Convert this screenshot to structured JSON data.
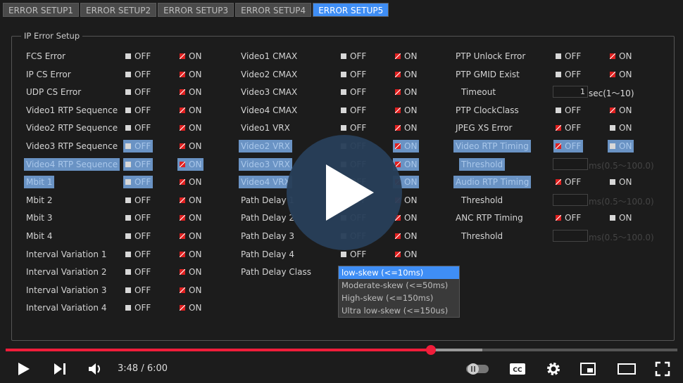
{
  "tabs": [
    "ERROR SETUP1",
    "ERROR SETUP2",
    "ERROR SETUP3",
    "ERROR SETUP4",
    "ERROR SETUP5"
  ],
  "active_tab": 4,
  "group_title": "IP Error Setup",
  "off_label": "OFF",
  "on_label": "ON",
  "columns": [
    [
      {
        "label": "FCS Error",
        "on": true
      },
      {
        "label": "IP CS Error",
        "on": true
      },
      {
        "label": "UDP CS Error",
        "on": true
      },
      {
        "label": "Video1 RTP Sequence",
        "on": true
      },
      {
        "label": "Video2 RTP Sequence",
        "on": true
      },
      {
        "label": "Video3 RTP Sequence",
        "on": true,
        "hl_off": true
      },
      {
        "label": "Video4 RTP Sequence",
        "on": true,
        "hl_label": true,
        "hl_off": true,
        "hl_on": true
      },
      {
        "label": "Mbit 1",
        "on": true,
        "hl_label": true,
        "hl_off": true
      },
      {
        "label": "Mbit 2",
        "on": true
      },
      {
        "label": "Mbit 3",
        "on": true
      },
      {
        "label": "Mbit 4",
        "on": true
      },
      {
        "label": "Interval Variation 1",
        "on": true
      },
      {
        "label": "Interval Variation 2",
        "on": true
      },
      {
        "label": "Interval Variation 3",
        "on": true
      },
      {
        "label": "Interval Variation 4",
        "on": true
      }
    ],
    [
      {
        "label": "Video1 CMAX",
        "on": true
      },
      {
        "label": "Video2 CMAX",
        "on": true
      },
      {
        "label": "Video3 CMAX",
        "on": true
      },
      {
        "label": "Video4 CMAX",
        "on": true
      },
      {
        "label": "Video1 VRX",
        "on": true
      },
      {
        "label": "Video2 VRX",
        "on": true,
        "hl_label": true,
        "hl_on": true
      },
      {
        "label": "Video3 VRX",
        "on": true,
        "hl_label": true,
        "hl_on": true
      },
      {
        "label": "Video4 VRX",
        "on": true,
        "hl_label": true,
        "hl_on": true
      },
      {
        "label": "Path Delay 1",
        "on": true
      },
      {
        "label": "Path Delay 2",
        "on": true
      },
      {
        "label": "Path Delay 3",
        "on": true
      },
      {
        "label": "Path Delay 4",
        "on": true
      },
      {
        "label": "Path Delay Class",
        "dropdown": true
      }
    ],
    [
      {
        "label": "PTP Unlock Error",
        "on": true
      },
      {
        "label": "PTP GMID Exist",
        "on": true
      },
      {
        "label": "Timeout",
        "sub": true,
        "value": "1",
        "unit": "sec(1～10)"
      },
      {
        "label": "PTP ClockClass",
        "on": true
      },
      {
        "label": "JPEG XS Error",
        "on": false
      },
      {
        "label": "Video RTP Timing",
        "on": false,
        "hl_label": true,
        "hl_off": true,
        "hl_on": true
      },
      {
        "label": "Threshold",
        "sub": true,
        "hl_label": true,
        "value": "",
        "unit": "ms(0.5～100.0)",
        "dim": true
      },
      {
        "label": "Audio RTP Timing",
        "on": false,
        "hl_label": true
      },
      {
        "label": "Threshold",
        "sub": true,
        "value": "",
        "unit": "ms(0.5～100.0)",
        "dim": true
      },
      {
        "label": "ANC RTP Timing",
        "on": false
      },
      {
        "label": "Threshold",
        "sub": true,
        "value": "",
        "unit": "ms(0.5～100.0)",
        "dim": true
      }
    ]
  ],
  "dropdown": {
    "options": [
      "low-skew (<=10ms)",
      "Moderate-skew (<=50ms)",
      "High-skew (<=150ms)",
      "Ultra low-skew (<=150us)"
    ],
    "selected": 0
  },
  "player": {
    "time": "3:48 / 6:00",
    "progress": 0.633,
    "buffered": 0.71,
    "colors": {
      "progress": "#f01d3a"
    }
  }
}
